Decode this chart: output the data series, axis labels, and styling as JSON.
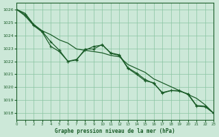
{
  "title": "Graphe pression niveau de la mer (hPa)",
  "background_color": "#cce8d8",
  "plot_bg_color": "#cce8d8",
  "grid_color": "#88c4a0",
  "line_color": "#1a5c28",
  "ylim": [
    1017.5,
    1026.5
  ],
  "xlim": [
    0,
    23
  ],
  "yticks": [
    1018,
    1019,
    1020,
    1021,
    1022,
    1023,
    1024,
    1025,
    1026
  ],
  "xticks": [
    0,
    1,
    2,
    3,
    4,
    5,
    6,
    7,
    8,
    9,
    10,
    11,
    12,
    13,
    14,
    15,
    16,
    17,
    18,
    19,
    20,
    21,
    22,
    23
  ],
  "series1_x": [
    0,
    1,
    2,
    3,
    4,
    5,
    6,
    7,
    8,
    9,
    10,
    11,
    12,
    13,
    14,
    15,
    16,
    17,
    18,
    19,
    20,
    21,
    22,
    23
  ],
  "series1_y": [
    1026.0,
    1025.7,
    1024.85,
    1024.35,
    1024.05,
    1023.65,
    1023.4,
    1022.95,
    1022.85,
    1022.75,
    1022.65,
    1022.45,
    1022.35,
    1021.75,
    1021.45,
    1021.15,
    1020.65,
    1020.35,
    1020.05,
    1019.75,
    1019.45,
    1019.15,
    1018.65,
    1018.0
  ],
  "series2_x": [
    0,
    1,
    2,
    3,
    4,
    5,
    6,
    7,
    8,
    9,
    10,
    11,
    12,
    13,
    14,
    15,
    16,
    17,
    18,
    19,
    20,
    21,
    22,
    23
  ],
  "series2_y": [
    1026.0,
    1025.6,
    1024.8,
    1024.3,
    1023.5,
    1022.85,
    1022.0,
    1022.15,
    1022.85,
    1023.15,
    1023.25,
    1022.65,
    1022.5,
    1021.5,
    1021.1,
    1020.6,
    1020.3,
    1019.6,
    1019.75,
    1019.7,
    1019.5,
    1018.6,
    1018.55,
    1018.0
  ],
  "series3_x": [
    0,
    1,
    2,
    3,
    4,
    5,
    6,
    7,
    8,
    9,
    10,
    11,
    12,
    13,
    14,
    15,
    16,
    17,
    18,
    19,
    20,
    21,
    22,
    23
  ],
  "series3_y": [
    1026.0,
    1025.5,
    1024.75,
    1024.25,
    1023.15,
    1022.75,
    1022.0,
    1022.1,
    1022.95,
    1022.95,
    1023.3,
    1022.6,
    1022.45,
    1021.45,
    1021.0,
    1020.5,
    1020.35,
    1019.55,
    1019.75,
    1019.75,
    1019.45,
    1018.55,
    1018.5,
    1018.0
  ]
}
